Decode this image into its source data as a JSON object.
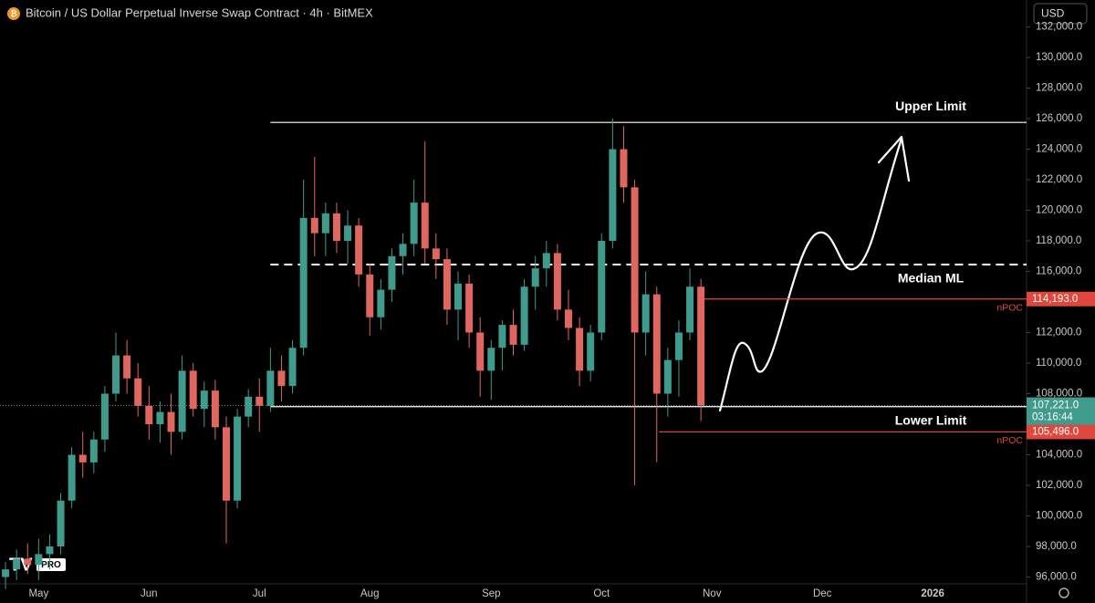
{
  "toolbar": {
    "title": "Bitcoin / US Dollar Perpetual Inverse Swap Contract · 4h · BitMEX",
    "currency": "USD",
    "logo": "PRO"
  },
  "chart_data": {
    "type": "candlestick",
    "categories": [
      null,
      null,
      null,
      "May",
      null,
      null,
      null,
      null,
      null,
      null,
      null,
      null,
      null,
      "Jun",
      null,
      null,
      null,
      null,
      null,
      null,
      null,
      null,
      null,
      "Jul",
      null,
      null,
      null,
      null,
      null,
      null,
      null,
      null,
      null,
      "Aug",
      null,
      null,
      null,
      null,
      null,
      null,
      null,
      null,
      null,
      null,
      "Sep",
      null,
      null,
      null,
      null,
      null,
      null,
      null,
      null,
      null,
      "Oct",
      null,
      null,
      null,
      null,
      null,
      null,
      null,
      null,
      null,
      "Nov",
      null,
      null,
      null,
      null,
      null,
      null,
      null,
      null,
      null,
      "Dec",
      null,
      null,
      null,
      null,
      null,
      null,
      null,
      null,
      null,
      "2026",
      null,
      null,
      null,
      null,
      null,
      null,
      null,
      null
    ],
    "open": [
      96000,
      96500,
      97200,
      96800,
      97500,
      98000,
      101000,
      104000,
      103500,
      105000,
      108000,
      110500,
      109000,
      107200,
      106000,
      106800,
      105500,
      109500,
      107000,
      108200,
      105800,
      101000,
      106500,
      107800,
      107200,
      109500,
      108500,
      111000,
      119500,
      118500,
      119800,
      118000,
      119000,
      115800,
      113000,
      114800,
      117000,
      117800,
      120500,
      117500,
      116800,
      113500,
      115200,
      112000,
      109500,
      111000,
      112500,
      111200,
      115000,
      116200,
      117200,
      113500,
      112300,
      109500,
      112000,
      118000,
      124000,
      121500,
      112000,
      114500,
      108000,
      110200,
      112000,
      115000,
      null,
      null,
      null,
      null,
      null,
      null,
      null,
      null,
      null,
      null,
      null,
      null,
      null,
      null,
      null,
      null,
      null,
      null,
      null,
      null,
      null,
      null,
      null,
      null,
      null,
      null,
      null,
      null,
      null
    ],
    "high": [
      97000,
      97800,
      98200,
      98500,
      98800,
      101500,
      104500,
      105500,
      105500,
      108500,
      112000,
      111500,
      110000,
      108500,
      107500,
      108000,
      110500,
      110000,
      108800,
      108900,
      106500,
      107000,
      108300,
      109000,
      111000,
      110500,
      111500,
      122000,
      123500,
      120500,
      120500,
      120000,
      119500,
      116500,
      115500,
      117500,
      118500,
      122000,
      124500,
      118500,
      117500,
      116000,
      115800,
      113000,
      111500,
      112800,
      113500,
      115500,
      117000,
      118000,
      117800,
      114800,
      113000,
      112500,
      118500,
      126000,
      125500,
      122000,
      116000,
      115000,
      111000,
      112800,
      116200,
      115500,
      null,
      null,
      null,
      null,
      null,
      null,
      null,
      null,
      null,
      null,
      null,
      null,
      null,
      null,
      null,
      null,
      null,
      null,
      null,
      null,
      null,
      null,
      null,
      null,
      null,
      null,
      null,
      null,
      null
    ],
    "low": [
      95200,
      95800,
      96200,
      95800,
      96500,
      97500,
      100500,
      102500,
      102800,
      104200,
      107500,
      108000,
      106500,
      105000,
      104800,
      104000,
      105000,
      106500,
      105800,
      105000,
      98200,
      100500,
      105800,
      105500,
      106800,
      107500,
      108000,
      110500,
      117000,
      117000,
      117200,
      116500,
      115000,
      111800,
      112200,
      114000,
      115800,
      117000,
      116500,
      115500,
      112500,
      111500,
      111000,
      107800,
      107600,
      109500,
      110500,
      110800,
      113500,
      115000,
      112800,
      111500,
      108500,
      108800,
      111500,
      117500,
      120500,
      102000,
      110500,
      103500,
      106500,
      107800,
      111500,
      106200,
      null,
      null,
      null,
      null,
      null,
      null,
      null,
      null,
      null,
      null,
      null,
      null,
      null,
      null,
      null,
      null,
      null,
      null,
      null,
      null,
      null,
      null,
      null,
      null,
      null,
      null,
      null,
      null,
      null
    ],
    "close": [
      96500,
      97200,
      96800,
      97500,
      98000,
      101000,
      104000,
      103500,
      105000,
      108000,
      110500,
      109000,
      107200,
      106000,
      106800,
      105500,
      109500,
      107000,
      108200,
      105800,
      101000,
      106500,
      107800,
      107200,
      109500,
      108500,
      111000,
      119500,
      118500,
      119800,
      118000,
      119000,
      115800,
      113000,
      114800,
      117000,
      117800,
      120500,
      117500,
      116800,
      113500,
      115200,
      112000,
      109500,
      111000,
      112500,
      111200,
      115000,
      116200,
      117200,
      113500,
      112300,
      109500,
      112000,
      118000,
      124000,
      121500,
      112000,
      114500,
      108000,
      110200,
      112000,
      115000,
      107221,
      null,
      null,
      null,
      null,
      null,
      null,
      null,
      null,
      null,
      null,
      null,
      null,
      null,
      null,
      null,
      null,
      null,
      null,
      null,
      null,
      null,
      null,
      null,
      null,
      null,
      null,
      null,
      null,
      null
    ],
    "up_color": "#3f9c8c",
    "down_color": "#e0675f",
    "ylim": [
      94300,
      133760
    ],
    "yticks": [
      {
        "value": 96000,
        "label": "96,000.0"
      },
      {
        "value": 98000,
        "label": "98,000.0"
      },
      {
        "value": 100000,
        "label": "100,000.0"
      },
      {
        "value": 102000,
        "label": "102,000.0"
      },
      {
        "value": 104000,
        "label": "104,000.0"
      },
      {
        "value": 106000,
        "label": "106,000.0"
      },
      {
        "value": 108000,
        "label": "108,000.0"
      },
      {
        "value": 110000,
        "label": "110,000.0"
      },
      {
        "value": 112000,
        "label": "112,000.0"
      },
      {
        "value": 114000,
        "label": "114,000.0"
      },
      {
        "value": 116000,
        "label": "116,000.0"
      },
      {
        "value": 118000,
        "label": "118,000.0"
      },
      {
        "value": 120000,
        "label": "120,000.0"
      },
      {
        "value": 122000,
        "label": "122,000.0"
      },
      {
        "value": 124000,
        "label": "124,000.0"
      },
      {
        "value": 126000,
        "label": "126,000.0"
      },
      {
        "value": 128000,
        "label": "128,000.0"
      },
      {
        "value": 130000,
        "label": "130,000.0"
      },
      {
        "value": 132000,
        "label": "132,000.0"
      }
    ],
    "levels": [
      {
        "label": "Upper Limit",
        "value": 125750,
        "style": "solid"
      },
      {
        "label": "Median ML",
        "value": 116450,
        "style": "dashed"
      },
      {
        "label": "Lower Limit",
        "value": 107150,
        "style": "solid"
      }
    ],
    "npoc": [
      {
        "label": "nPOC",
        "value": 114193,
        "value_label": "114,193.0"
      },
      {
        "label": "nPOC",
        "value": 105496,
        "value_label": "105,496.0"
      }
    ],
    "last_price": {
      "label": "107,221.0",
      "countdown": "03:16:44",
      "color": "#3f9c8c"
    },
    "npoc_color": "#e0473c"
  }
}
